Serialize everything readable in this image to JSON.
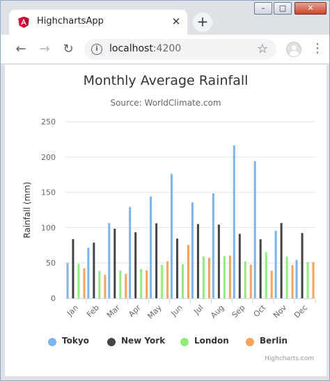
{
  "browser": {
    "tab_title": "HighchartsApp",
    "tab_close": "✕",
    "new_tab": "+",
    "url_host": "localhost",
    "url_port": ":4200",
    "back": "←",
    "forward": "→",
    "reload": "↻",
    "star": "☆",
    "menu": "⋮",
    "info": "i",
    "window_minimize": "–",
    "window_maximize": "□",
    "window_close": "✕",
    "favicon_color": "#dd0031"
  },
  "chart_data": {
    "type": "bar",
    "title": "Monthly Average Rainfall",
    "subtitle": "Source: WorldClimate.com",
    "ylabel": "Rainfall (mm)",
    "xlabel": "",
    "ylim": [
      0,
      250
    ],
    "yticks": [
      0,
      50,
      100,
      150,
      200,
      250
    ],
    "categories": [
      "Jan",
      "Feb",
      "Mar",
      "Apr",
      "May",
      "Jun",
      "Jul",
      "Aug",
      "Sep",
      "Oct",
      "Nov",
      "Dec"
    ],
    "series": [
      {
        "name": "Tokyo",
        "color": "#7cb5ec",
        "values": [
          49.9,
          71.5,
          106.4,
          129.2,
          144.0,
          176.0,
          135.6,
          148.5,
          216.4,
          194.1,
          95.6,
          54.4
        ]
      },
      {
        "name": "New York",
        "color": "#434348",
        "values": [
          83.6,
          78.8,
          98.5,
          93.4,
          106.0,
          84.5,
          105.0,
          104.3,
          91.2,
          83.5,
          106.6,
          92.3
        ]
      },
      {
        "name": "London",
        "color": "#90ed7d",
        "values": [
          48.9,
          38.8,
          39.3,
          41.4,
          47.0,
          48.3,
          59.0,
          59.6,
          52.4,
          65.2,
          59.3,
          51.2
        ]
      },
      {
        "name": "Berlin",
        "color": "#f7a35c",
        "values": [
          42.4,
          33.2,
          34.5,
          39.7,
          52.6,
          75.5,
          57.4,
          60.4,
          47.6,
          39.1,
          46.8,
          51.1
        ]
      }
    ],
    "grid": true,
    "legend": "bottom-center",
    "credits": "Highcharts.com"
  }
}
